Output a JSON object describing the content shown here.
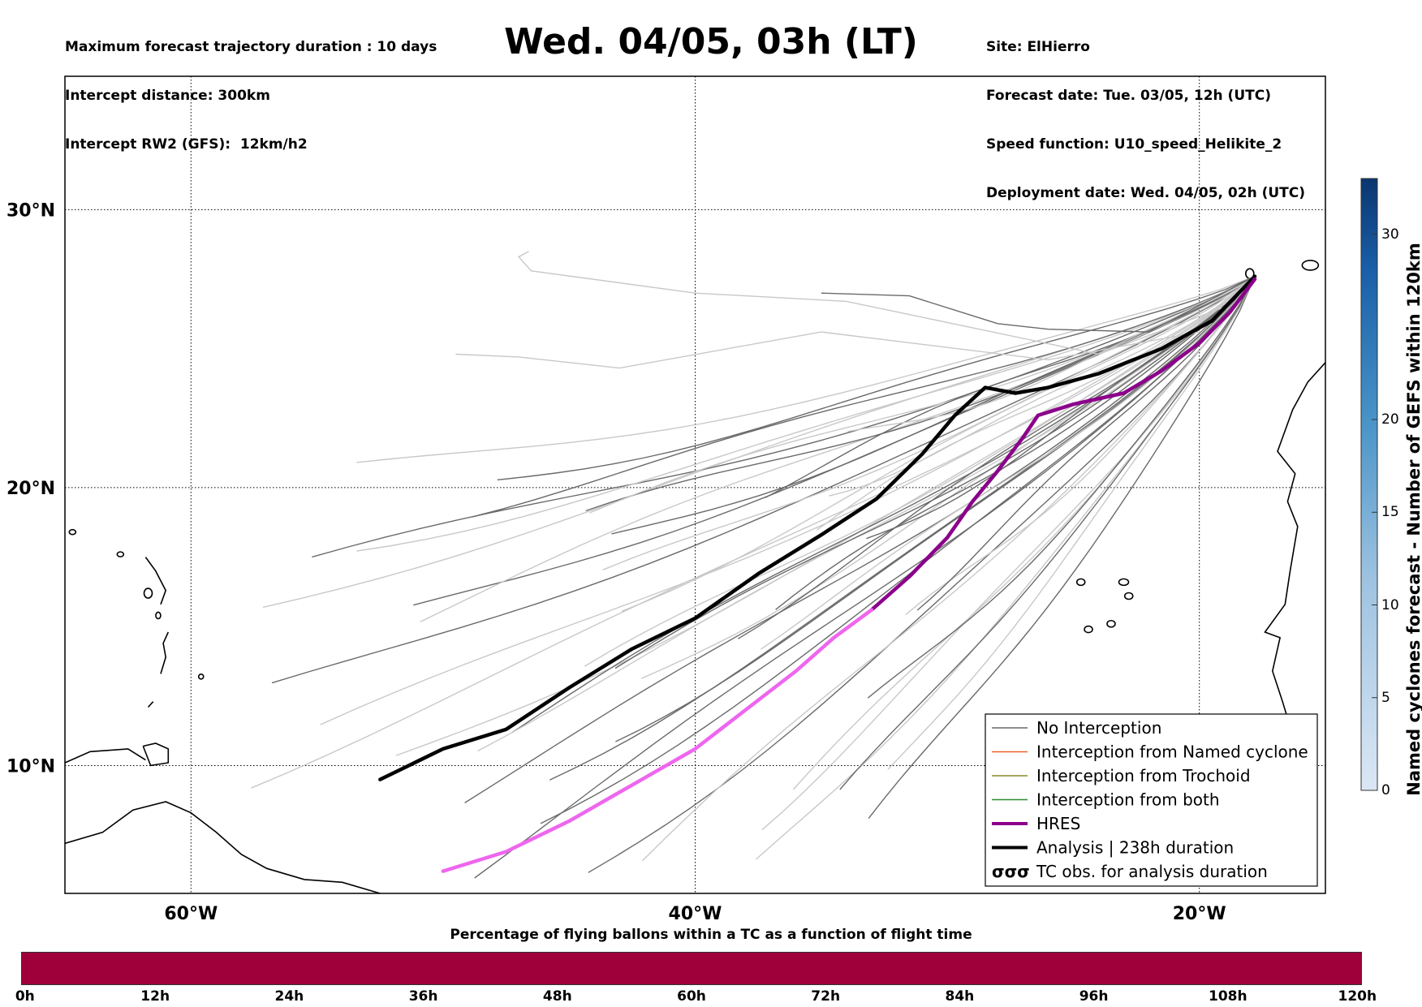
{
  "header_left": [
    "Maximum forecast trajectory duration : 10 days",
    "Intercept distance: 300km",
    "Intercept RW2 (GFS):  12km/h2"
  ],
  "header_right": [
    "Site: ElHierro",
    "Forecast date: Tue. 03/05, 12h (UTC)",
    "Speed function: U10_speed_Helikite_2",
    "Deployment date: Wed. 04/05, 02h (UTC)"
  ],
  "title": "Wed. 04/05, 03h (LT)",
  "map": {
    "lon_range": [
      -65,
      -15
    ],
    "lat_range": [
      5.4,
      34.8
    ],
    "lon_ticks": [
      {
        "value": -60,
        "label": "60°W"
      },
      {
        "value": -40,
        "label": "40°W"
      },
      {
        "value": -20,
        "label": "20°W"
      }
    ],
    "lat_ticks": [
      {
        "value": 10,
        "label": "10°N"
      },
      {
        "value": 20,
        "label": "20°N"
      },
      {
        "value": 30,
        "label": "30°N"
      }
    ],
    "grid": true,
    "colors": {
      "ensemble": "#c8c8c8",
      "no_interception": "#6a6a6a",
      "named_cyclone": "#e8622a",
      "trochoid": "#8a8a2a",
      "both": "#2a8a2a",
      "hres": "#8b008b",
      "hres_late": "#ee66ee",
      "analysis": "#000000"
    }
  },
  "legend": {
    "placement": "lower-right",
    "items": [
      {
        "label": "No Interception",
        "style": "no_interception"
      },
      {
        "label": "Interception from Named cyclone",
        "style": "named_cyclone"
      },
      {
        "label": "Interception from Trochoid",
        "style": "trochoid"
      },
      {
        "label": "Interception from both",
        "style": "both"
      },
      {
        "label": "HRES",
        "style": "hres"
      },
      {
        "label": "Analysis | 238h duration",
        "style": "analysis"
      },
      {
        "label": "TC obs. for analysis duration",
        "style": "tc_obs"
      }
    ]
  },
  "colorbar": {
    "title": "Named cyclones forecast - Number of GEFS within 120km",
    "range": [
      0,
      33
    ],
    "ticks": [
      0,
      5,
      10,
      15,
      20,
      30
    ]
  },
  "flight_time_bar": {
    "title": "Percentage of flying ballons within a TC as a function of flight time",
    "labels": [
      "0h",
      "12h",
      "24h",
      "36h",
      "48h",
      "60h",
      "72h",
      "84h",
      "96h",
      "108h",
      "120h"
    ],
    "color": "#a0003a"
  },
  "chart_data": {
    "type": "line",
    "title": "Wed. 04/05, 03h (LT)",
    "xlabel": "",
    "ylabel": "",
    "series": [
      {
        "name": "Analysis | 238h duration",
        "x": [
          -17.8,
          -19.5,
          -21.5,
          -24.0,
          -26.0,
          -27.3,
          -28.5,
          -29.7,
          -31.0,
          -32.8,
          -35.0,
          -37.5,
          -40.0,
          -42.5,
          -45.0,
          -47.5,
          -50.0,
          -52.5
        ],
        "y": [
          27.6,
          26.0,
          25.0,
          24.1,
          23.6,
          23.4,
          23.6,
          22.6,
          21.2,
          19.6,
          18.3,
          16.9,
          15.3,
          14.2,
          12.8,
          11.3,
          10.6,
          9.5
        ]
      },
      {
        "name": "HRES",
        "x": [
          -17.8,
          -18.8,
          -20.0,
          -21.5,
          -23.0,
          -25.0,
          -26.4,
          -27.0,
          -28.0,
          -29.0,
          -30.0,
          -31.5,
          -33.0
        ],
        "y": [
          27.5,
          26.3,
          25.2,
          24.2,
          23.4,
          23.0,
          22.6,
          21.8,
          20.6,
          19.5,
          18.2,
          16.8,
          15.6
        ]
      },
      {
        "name": "HRES (late)",
        "x": [
          -33.0,
          -34.5,
          -36.0,
          -38.0,
          -40.0,
          -42.5,
          -45.0,
          -47.5,
          -50.0
        ],
        "y": [
          15.6,
          14.6,
          13.4,
          12.0,
          10.6,
          9.3,
          8.0,
          6.9,
          6.2
        ]
      }
    ]
  }
}
